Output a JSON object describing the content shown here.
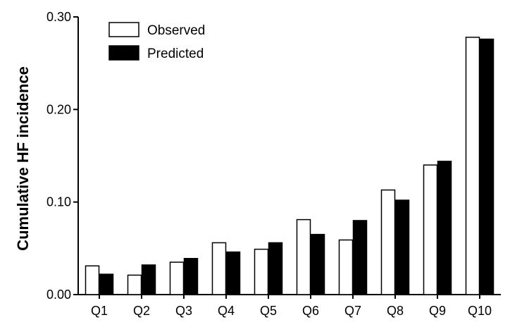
{
  "chart_data": {
    "type": "bar",
    "title": "",
    "xlabel": "",
    "ylabel": "Cumulative HF incidence",
    "ylim": [
      0,
      0.3
    ],
    "yticks": [
      "0.00",
      "0.10",
      "0.20",
      "0.30"
    ],
    "ytick_values": [
      0,
      0.1,
      0.2,
      0.3
    ],
    "categories": [
      "Q1",
      "Q2",
      "Q3",
      "Q4",
      "Q5",
      "Q6",
      "Q7",
      "Q8",
      "Q9",
      "Q10"
    ],
    "series": [
      {
        "name": "Observed",
        "color": "#ffffff",
        "values": [
          0.031,
          0.021,
          0.035,
          0.056,
          0.049,
          0.081,
          0.059,
          0.113,
          0.14,
          0.278
        ]
      },
      {
        "name": "Predicted",
        "color": "#000000",
        "values": [
          0.022,
          0.032,
          0.039,
          0.046,
          0.056,
          0.065,
          0.08,
          0.102,
          0.144,
          0.276
        ]
      }
    ],
    "legend_position": "top-left",
    "grid": false
  }
}
